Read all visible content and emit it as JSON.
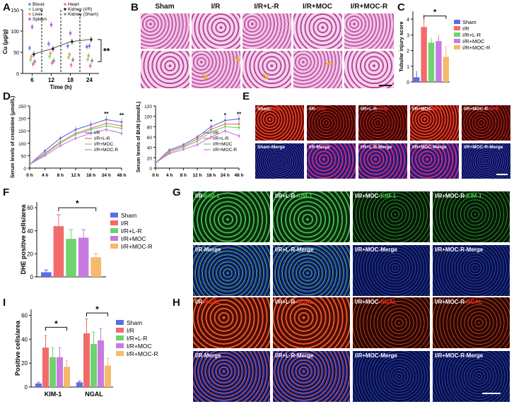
{
  "panels": {
    "A": "A",
    "B": "B",
    "C": "C",
    "D": "D",
    "E": "E",
    "F": "F",
    "G": "G",
    "H": "H",
    "I": "I"
  },
  "colors": {
    "sham": "#5b6ee1",
    "ir": "#f26b6b",
    "irlr": "#6ed36e",
    "irmoc": "#c77be0",
    "irmocr": "#f7b96a",
    "blood": "#7b6ff0",
    "lung": "#8fd38f",
    "liver": "#f59b5a",
    "spleen": "#b45ad8",
    "heart": "#f06fa0",
    "kidney_ir": "#222222",
    "kidney_sham": "#8a8a8a"
  },
  "panel_b": {
    "headers": [
      "Sham",
      "I/R",
      "I/R+L-R",
      "I/R+MOC",
      "I/R+MOC-R"
    ]
  },
  "panel_e": {
    "top": [
      {
        "prefix": "Sham-",
        "stain": "DHE"
      },
      {
        "prefix": "I/R-",
        "stain": "DHE"
      },
      {
        "prefix": "I/R+L-R-",
        "stain": "DHE"
      },
      {
        "prefix": "I/R+MOC-",
        "stain": "DHE"
      },
      {
        "prefix": "I/R+MOC-R-",
        "stain": "DHE"
      }
    ],
    "bottom": [
      "Sham-Merge",
      "I/R-Merge",
      "I/R+L-R-Merge",
      "I/R+MOC-Merge",
      "I/R+MOC-R-Merge"
    ]
  },
  "panel_g": {
    "top": [
      {
        "prefix": "I/R-",
        "stain": "KIM-1"
      },
      {
        "prefix": "I/R+L-R-",
        "stain": "KIM-1"
      },
      {
        "prefix": "I/R+MOC-",
        "stain": "KIM-1"
      },
      {
        "prefix": "I/R+MOC-R-",
        "stain": "KIM-1"
      }
    ],
    "bottom": [
      "I/R-Merge",
      "I/R+L-R-Merge",
      "I/R+MOC-Merge",
      "I/R+MOC-R-Merge"
    ]
  },
  "panel_h": {
    "top": [
      {
        "prefix": "I/R-",
        "stain": "NGAL"
      },
      {
        "prefix": "I/R+L-R-",
        "stain": "NGAL"
      },
      {
        "prefix": "I/R+MOC-",
        "stain": "NGAL"
      },
      {
        "prefix": "I/R+MOC-R-",
        "stain": "NGAL"
      }
    ],
    "bottom": [
      "I/R-Merge",
      "I/R+L-R-Merge",
      "I/R+MOC-Merge",
      "I/R+MOC-R-Merge"
    ]
  },
  "chart_data": [
    {
      "id": "A",
      "type": "scatter",
      "xlabel": "Time (h)",
      "ylabel": "Cu (μg/g)",
      "xticks": [
        6,
        12,
        18,
        24
      ],
      "yticks": [
        0,
        50,
        100,
        150
      ],
      "ylim": [
        0,
        150
      ],
      "vlines": [
        9,
        15,
        21
      ],
      "annotation": "**",
      "series": [
        {
          "name": "Blood",
          "color": "#7b6ff0",
          "x": [
            6,
            12,
            18,
            24
          ],
          "y": [
            60,
            70,
            65,
            63
          ]
        },
        {
          "name": "Lung",
          "color": "#8fd38f",
          "x": [
            6,
            12,
            18,
            24
          ],
          "y": [
            32,
            40,
            38,
            33
          ]
        },
        {
          "name": "Liver",
          "color": "#f59b5a",
          "x": [
            6,
            12,
            18,
            24
          ],
          "y": [
            40,
            48,
            45,
            42
          ]
        },
        {
          "name": "Spleen",
          "color": "#b45ad8",
          "x": [
            6,
            12,
            18,
            24
          ],
          "y": [
            110,
            115,
            95,
            65
          ]
        },
        {
          "name": "Heart",
          "color": "#f06fa0",
          "x": [
            6,
            12,
            18,
            24
          ],
          "y": [
            22,
            25,
            20,
            18
          ]
        },
        {
          "name": "Kidney (I/R)",
          "color": "#222222",
          "x": [
            6,
            12,
            18,
            24
          ],
          "y": [
            45,
            58,
            75,
            80
          ]
        },
        {
          "name": "Kidney (Sham)",
          "color": "#8a8a8a",
          "x": [
            6,
            12,
            18,
            24
          ],
          "y": [
            28,
            30,
            32,
            30
          ]
        }
      ]
    },
    {
      "id": "C",
      "type": "bar",
      "ylabel": "Tubular injury score",
      "yticks": [
        0,
        1,
        2,
        3,
        4
      ],
      "ylim": [
        0,
        4.5
      ],
      "categories": [
        "Sham",
        "I/R",
        "I/R+L-R",
        "I/R+MOC",
        "I/R+MOC-R"
      ],
      "values": [
        0.3,
        3.5,
        2.5,
        2.6,
        1.6
      ],
      "errors": [
        0.4,
        0.8,
        0.3,
        0.4,
        0.7
      ],
      "annotation": "*",
      "legend": [
        "Sham",
        "I/R",
        "I/R+L-R",
        "I/R+MOC",
        "I/R+MOC-R"
      ]
    },
    {
      "id": "D1",
      "type": "line",
      "ylabel": "Serum levels of creatinine (μmol/L)",
      "xticks": [
        "0 h",
        "4 h",
        "8 h",
        "12 h",
        "18 h",
        "24 h",
        "48 h"
      ],
      "yticks": [
        0,
        50,
        100,
        150,
        200,
        250
      ],
      "ylim": [
        0,
        250
      ],
      "annotations": [
        "**",
        "**"
      ],
      "series": [
        {
          "name": "I/R",
          "values": [
            15,
            70,
            120,
            155,
            175,
            195,
            185
          ]
        },
        {
          "name": "I/R+L-R",
          "values": [
            15,
            60,
            105,
            140,
            160,
            180,
            170
          ]
        },
        {
          "name": "I/R+MOC",
          "values": [
            15,
            55,
            100,
            135,
            155,
            170,
            160
          ]
        },
        {
          "name": "I/R+MOC-R",
          "values": [
            15,
            50,
            90,
            120,
            140,
            155,
            140
          ]
        }
      ]
    },
    {
      "id": "D2",
      "type": "line",
      "ylabel": "Serum levels of BUN (mmol/L)",
      "xticks": [
        "0 h",
        "4 h",
        "8 h",
        "12 h",
        "18 h",
        "24 h",
        "48 h"
      ],
      "yticks": [
        0,
        20,
        40,
        60,
        80,
        100,
        120
      ],
      "ylim": [
        0,
        120
      ],
      "annotations": [
        "*",
        "*",
        "**"
      ],
      "series": [
        {
          "name": "I/R",
          "values": [
            10,
            35,
            45,
            60,
            80,
            92,
            95
          ]
        },
        {
          "name": "I/R+L-R",
          "values": [
            10,
            33,
            42,
            56,
            75,
            85,
            85
          ]
        },
        {
          "name": "I/R+MOC",
          "values": [
            10,
            30,
            40,
            52,
            70,
            80,
            78
          ]
        },
        {
          "name": "I/R+MOC-R",
          "values": [
            10,
            28,
            36,
            45,
            60,
            72,
            62
          ]
        }
      ]
    },
    {
      "id": "F",
      "type": "bar",
      "ylabel": "DHE positive cells/area",
      "yticks": [
        0,
        20,
        40,
        60
      ],
      "ylim": [
        0,
        65
      ],
      "categories": [
        "Sham",
        "I/R",
        "I/R+L-R",
        "I/R+MOC",
        "I/R+MOC-R"
      ],
      "values": [
        4,
        44,
        33,
        34,
        17
      ],
      "errors": [
        2,
        10,
        8,
        7,
        3
      ],
      "annotation": "*",
      "legend": [
        "Sham",
        "I/R",
        "I/R+L-R",
        "I/R+MOC",
        "I/R+MOC-R"
      ]
    },
    {
      "id": "I",
      "type": "bar",
      "ylabel": "Positive cells/area",
      "yticks": [
        0,
        20,
        40,
        60
      ],
      "ylim": [
        0,
        65
      ],
      "categories": [
        "KIM-1",
        "NGAL"
      ],
      "series": [
        {
          "name": "Sham",
          "values": [
            3,
            4
          ],
          "errors": [
            1,
            1
          ]
        },
        {
          "name": "I/R",
          "values": [
            33,
            45
          ],
          "errors": [
            10,
            12
          ]
        },
        {
          "name": "I/R+L-R",
          "values": [
            25,
            36
          ],
          "errors": [
            8,
            10
          ]
        },
        {
          "name": "I/R+MOC",
          "values": [
            25,
            39
          ],
          "errors": [
            8,
            10
          ]
        },
        {
          "name": "I/R+MOC-R",
          "values": [
            17,
            18
          ],
          "errors": [
            5,
            6
          ]
        }
      ],
      "annotations": [
        "*",
        "*"
      ],
      "legend": [
        "Sham",
        "I/R",
        "I/R+L-R",
        "I/R+MOC",
        "I/R+MOC-R"
      ]
    }
  ]
}
